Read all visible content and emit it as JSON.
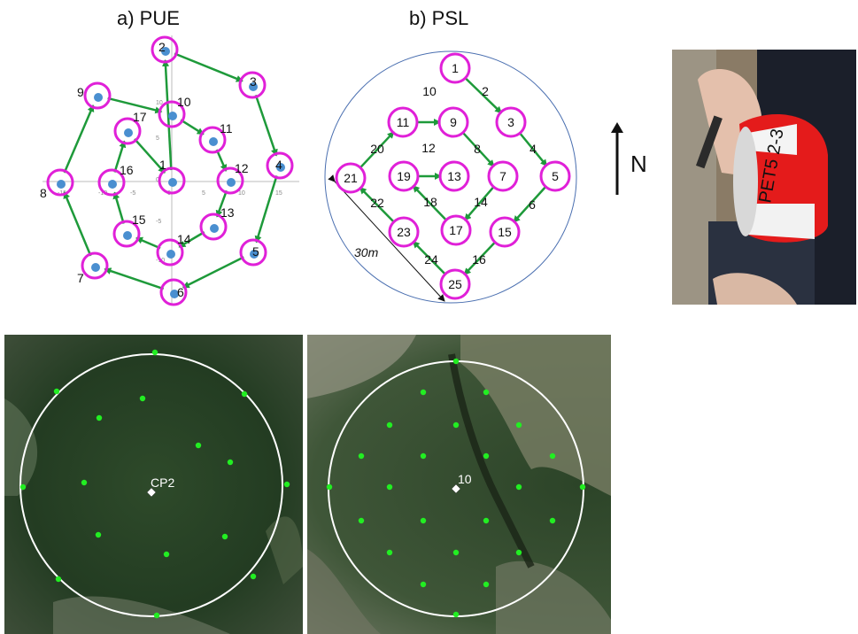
{
  "titles": {
    "pue": "a) PUE",
    "psl": "b) PSL"
  },
  "north": {
    "label": "N"
  },
  "pue": {
    "axis_ticks_x": [
      "-15",
      "-10",
      "-5",
      "0",
      "5",
      "10",
      "15"
    ],
    "axis_ticks_y": [
      "10",
      "5",
      "0",
      "-5",
      "-10"
    ],
    "points": [
      {
        "id": "2"
      },
      {
        "id": "3"
      },
      {
        "id": "4"
      },
      {
        "id": "5"
      },
      {
        "id": "6"
      },
      {
        "id": "7"
      },
      {
        "id": "8"
      },
      {
        "id": "9"
      },
      {
        "id": "10"
      },
      {
        "id": "11"
      },
      {
        "id": "12"
      },
      {
        "id": "13"
      },
      {
        "id": "14"
      },
      {
        "id": "15"
      },
      {
        "id": "16"
      },
      {
        "id": "17"
      },
      {
        "id": "1"
      }
    ]
  },
  "psl": {
    "points": [
      "1",
      "3",
      "5",
      "7",
      "9",
      "11",
      "13",
      "15",
      "17",
      "19",
      "21",
      "23",
      "25"
    ],
    "path_labels": [
      "2",
      "4",
      "6",
      "8",
      "10",
      "12",
      "14",
      "16",
      "18",
      "20",
      "22",
      "24"
    ],
    "radius_label": "30m"
  },
  "photo": {
    "tape_text": "PET5 2-3",
    "alt": "tape"
  },
  "satellite": {
    "left_label": "CP2",
    "right_label": "10"
  },
  "colors": {
    "ring": "#e020d8",
    "dot": "#4a8fd0",
    "arrow": "#1e9a3a",
    "sat_point": "#22ee22",
    "plot_circle": "#ffffff"
  }
}
